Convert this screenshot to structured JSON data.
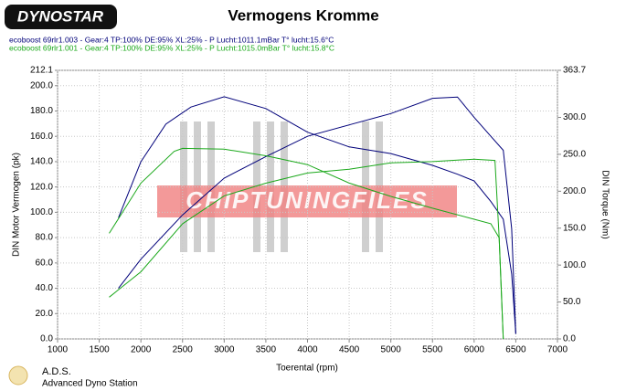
{
  "brand": "DYNOSTAR",
  "footer": {
    "title": "A.D.S.",
    "subtitle": "Advanced Dyno Station"
  },
  "watermark": "CHIPTUNINGFILES",
  "chart_data": {
    "type": "line",
    "title": "Vermogens Kromme",
    "x_label": "Toerental (rpm)",
    "y_label": "DIN Motor Vermogen (pk)",
    "y2_label": "DIN Torque (Nm)",
    "xlim": [
      1000,
      7000
    ],
    "xticks": [
      1000,
      1500,
      2000,
      2500,
      3000,
      3500,
      4000,
      4500,
      5000,
      5500,
      6000,
      6500,
      7000
    ],
    "ylim": [
      0,
      212.1
    ],
    "yticks": [
      {
        "value": 0,
        "label": "0.0"
      },
      {
        "value": 20,
        "label": "20.0"
      },
      {
        "value": 40,
        "label": "40.0"
      },
      {
        "value": 60,
        "label": "60.0"
      },
      {
        "value": 80,
        "label": "80.0"
      },
      {
        "value": 100,
        "label": "100.0"
      },
      {
        "value": 120,
        "label": "120.0"
      },
      {
        "value": 140,
        "label": "140.0"
      },
      {
        "value": 160,
        "label": "160.0"
      },
      {
        "value": 180,
        "label": "180.0"
      },
      {
        "value": 200,
        "label": "200.0"
      },
      212.1
    ],
    "y2lim": [
      0,
      363.7
    ],
    "y2ticks": [
      {
        "value": 0,
        "label": "0.0"
      },
      {
        "value": 50,
        "label": "50.0"
      },
      {
        "value": 100,
        "label": "100.0"
      },
      {
        "value": 150,
        "label": "150.0"
      },
      {
        "value": 200,
        "label": "200.0"
      },
      {
        "value": 250,
        "label": "250.0"
      },
      {
        "value": 300,
        "label": "300.0"
      },
      363.7
    ],
    "grid": true,
    "series": [
      {
        "name": "ecoboost 69rlr1.003 - Gear:4 TP:100% DE:95% XL:25%   - P Lucht:1011.1mBar T° lucht:15.6°C",
        "color": "#00007a",
        "x": [
          1730,
          2000,
          2500,
          3000,
          3500,
          4000,
          4500,
          5000,
          5500,
          5800,
          6000,
          6200,
          6350,
          6450,
          6500
        ],
        "values": [
          40,
          63,
          98,
          127,
          144,
          160,
          169,
          178,
          190,
          191,
          175,
          160,
          149,
          87,
          4
        ]
      },
      {
        "color": "#00007a",
        "axis": "y2",
        "x": [
          1730,
          2000,
          2300,
          2600,
          3000,
          3500,
          4000,
          4500,
          5000,
          5500,
          5800,
          6000,
          6200,
          6350,
          6450,
          6500
        ],
        "values": [
          164,
          240,
          291,
          314,
          328,
          312,
          280,
          260,
          251,
          235,
          223,
          214,
          186,
          162,
          88,
          7
        ]
      },
      {
        "name": "ecoboost 69rlr1.001 - Gear:4 TP:100% DE:95% XL:25%   - P Lucht:1015.0mBar T° lucht:15.8°C",
        "color": "#1aa81a",
        "x": [
          1620,
          2000,
          2500,
          3000,
          3500,
          4000,
          4500,
          5000,
          5500,
          6000,
          6250,
          6300,
          6350
        ],
        "values": [
          33,
          53,
          91,
          113,
          123,
          131,
          134,
          139,
          140,
          142,
          141,
          80,
          0
        ]
      },
      {
        "color": "#1aa81a",
        "axis": "y2",
        "x": [
          1620,
          2000,
          2400,
          2500,
          3000,
          3500,
          4000,
          4500,
          5000,
          5500,
          6000,
          6200,
          6300,
          6350
        ],
        "values": [
          143,
          211,
          254,
          258,
          257,
          248,
          236,
          211,
          193,
          177,
          162,
          156,
          137,
          0
        ]
      }
    ]
  }
}
